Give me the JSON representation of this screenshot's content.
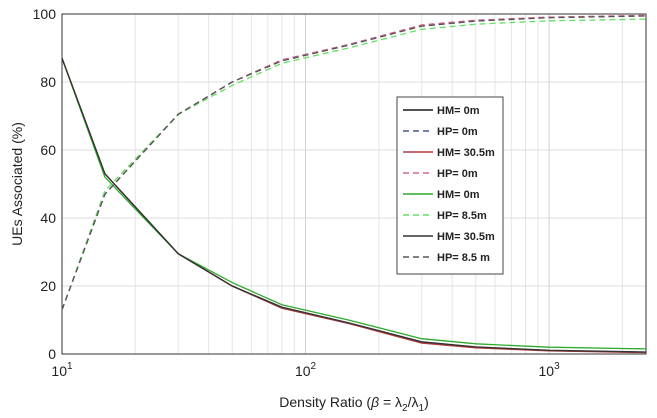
{
  "chart_data": {
    "type": "line",
    "xscale": "log",
    "xlim": [
      10,
      2500
    ],
    "ylim": [
      0,
      100
    ],
    "grid": true,
    "legend_placement": "center-right",
    "xlabel_prefix": "Density Ratio (",
    "xlabel_beta": "β",
    "xlabel_eq": " = λ",
    "xlabel_sub2": "2",
    "xlabel_slash": "/λ",
    "xlabel_sub1": "1",
    "xlabel_suffix": ")",
    "ylabel": "UEs Associated (%)",
    "x_ticks": [
      {
        "value": 10,
        "base": "10",
        "exp": "1"
      },
      {
        "value": 100,
        "base": "10",
        "exp": "2"
      },
      {
        "value": 1000,
        "base": "10",
        "exp": "3"
      }
    ],
    "y_ticks": [
      {
        "value": 0,
        "label": "0"
      },
      {
        "value": 20,
        "label": "20"
      },
      {
        "value": 40,
        "label": "40"
      },
      {
        "value": 60,
        "label": "60"
      },
      {
        "value": 80,
        "label": "80"
      },
      {
        "value": 100,
        "label": "100"
      }
    ],
    "x": [
      10,
      15,
      30,
      50,
      80,
      150,
      300,
      500,
      1000,
      2500
    ],
    "series": [
      {
        "name": "HM= 0m",
        "color": "#1a1a1a",
        "dash": "solid",
        "values": [
          87,
          53,
          29.5,
          20,
          13.5,
          9,
          3.5,
          2,
          1,
          0.5
        ]
      },
      {
        "name": "HP= 0m",
        "color": "#4a5a8a",
        "dash": "dashed",
        "values": [
          13,
          47,
          70.5,
          80,
          86.5,
          91,
          96.5,
          98,
          99,
          99.5
        ]
      },
      {
        "name": "HM= 30.5m",
        "color": "#b23a3a",
        "dash": "solid",
        "values": [
          87,
          53,
          29.5,
          20,
          13.5,
          9,
          3.2,
          1.8,
          0.9,
          0.4
        ]
      },
      {
        "name": "HP= 0m",
        "color": "#d46a8a",
        "dash": "dashed",
        "values": [
          13,
          47,
          70.5,
          80,
          86.5,
          91,
          96.8,
          98.2,
          99.1,
          99.6
        ]
      },
      {
        "name": "HM= 0m",
        "color": "#2eaa2e",
        "dash": "solid",
        "values": [
          87,
          52,
          29.5,
          21,
          14.5,
          10,
          4.5,
          3,
          2,
          1.5
        ]
      },
      {
        "name": "HP= 8.5m",
        "color": "#66dd66",
        "dash": "dashed",
        "values": [
          13,
          48,
          70.5,
          79,
          85.5,
          90,
          95.5,
          97,
          98,
          98.5
        ]
      },
      {
        "name": "HM= 30.5m",
        "color": "#333333",
        "dash": "solid",
        "values": [
          87,
          53,
          29.5,
          20,
          13.8,
          9.2,
          3.6,
          2.1,
          1.1,
          0.6
        ]
      },
      {
        "name": "HP= 8.5 m",
        "color": "#555555",
        "dash": "dashed",
        "values": [
          13,
          47,
          70.5,
          80,
          86.2,
          90.8,
          96.4,
          97.9,
          98.9,
          99.4
        ]
      }
    ]
  }
}
